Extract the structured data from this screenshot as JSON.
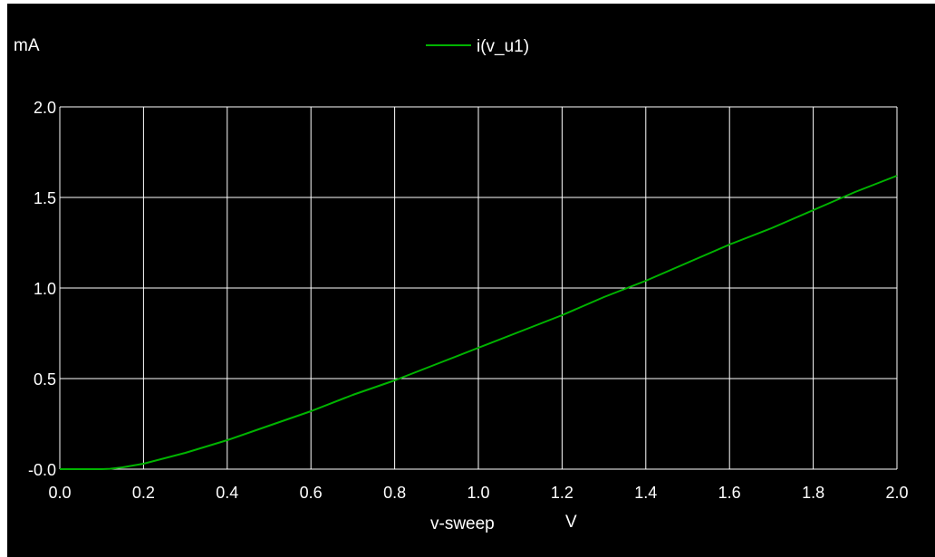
{
  "window": {
    "background": "#000000"
  },
  "chart_data": {
    "type": "line",
    "title": "",
    "xlabel": "v-sweep",
    "xunit": "V",
    "ylabel": "",
    "yunit": "mA",
    "xlim": [
      0.0,
      2.0
    ],
    "ylim": [
      0.0,
      2.0
    ],
    "x_ticks": [
      "0.0",
      "0.2",
      "0.4",
      "0.6",
      "0.8",
      "1.0",
      "1.2",
      "1.4",
      "1.6",
      "1.8",
      "2.0"
    ],
    "y_ticks": [
      "-0.0",
      "0.5",
      "1.0",
      "1.5",
      "2.0"
    ],
    "y_tick_values": [
      0.0,
      0.5,
      1.0,
      1.5,
      2.0
    ],
    "grid": true,
    "legend_position": "top-center",
    "series": [
      {
        "name": "i(v_u1)",
        "color": "#00b400",
        "x": [
          0.0,
          0.1,
          0.12,
          0.15,
          0.2,
          0.25,
          0.3,
          0.4,
          0.5,
          0.6,
          0.7,
          0.8,
          0.9,
          1.0,
          1.1,
          1.2,
          1.3,
          1.4,
          1.5,
          1.6,
          1.7,
          1.8,
          1.9,
          2.0
        ],
        "y": [
          0.0,
          0.0,
          0.002,
          0.01,
          0.03,
          0.06,
          0.09,
          0.16,
          0.24,
          0.32,
          0.41,
          0.49,
          0.58,
          0.67,
          0.76,
          0.85,
          0.95,
          1.04,
          1.14,
          1.24,
          1.33,
          1.43,
          1.53,
          1.62
        ]
      }
    ]
  }
}
